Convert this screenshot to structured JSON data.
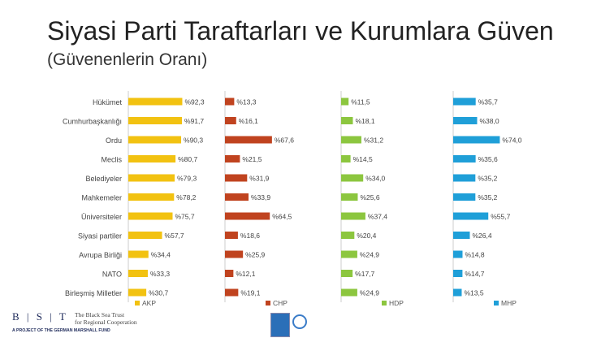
{
  "title": "Siyasi Parti Taraftarları ve Kurumlara Güven",
  "subtitle": "(Güvenenlerin Oranı)",
  "footer": {
    "logo_letters": "B | S | T",
    "org_name": "The Black Sea Trust\nfor Regional Cooperation",
    "tagline": "A PROJECT OF THE GERMAN MARSHALL FUND"
  },
  "colors": {
    "AKP": "#f2c211",
    "CHP": "#c0431f",
    "HDP": "#8cc63f",
    "MHP": "#1f9fd8"
  },
  "chart_data": {
    "type": "bar",
    "orientation": "horizontal",
    "categories": [
      "Hükümet",
      "Cumhurbaşkanlığı",
      "Ordu",
      "Meclis",
      "Belediyeler",
      "Mahkemeler",
      "Üniversiteler",
      "Siyasi partiler",
      "Avrupa Birliği",
      "NATO",
      "Birleşmiş Milletler"
    ],
    "series": [
      {
        "name": "AKP",
        "values": [
          92.3,
          91.7,
          90.3,
          80.7,
          79.3,
          78.2,
          75.7,
          57.7,
          34.4,
          33.3,
          30.7
        ],
        "labels": [
          "%92,3",
          "%91,7",
          "%90,3",
          "%80,7",
          "%79,3",
          "%78,2",
          "%75,7",
          "%57,7",
          "%34,4",
          "%33,3",
          "%30,7"
        ]
      },
      {
        "name": "CHP",
        "values": [
          13.3,
          16.1,
          67.6,
          21.5,
          31.9,
          33.9,
          64.5,
          18.6,
          25.9,
          12.1,
          19.1
        ],
        "labels": [
          "%13,3",
          "%16,1",
          "%67,6",
          "%21,5",
          "%31,9",
          "%33,9",
          "%64,5",
          "%18,6",
          "%25,9",
          "%12,1",
          "%19,1"
        ]
      },
      {
        "name": "HDP",
        "values": [
          11.5,
          18.1,
          31.2,
          14.5,
          34.0,
          25.6,
          37.4,
          20.4,
          24.9,
          17.7,
          24.9
        ],
        "labels": [
          "%11,5",
          "%18,1",
          "%31,2",
          "%14,5",
          "%34,0",
          "%25,6",
          "%37,4",
          "%20,4",
          "%24,9",
          "%17,7",
          "%24,9"
        ]
      },
      {
        "name": "MHP",
        "values": [
          35.7,
          38.0,
          74.0,
          35.6,
          35.2,
          35.2,
          55.7,
          26.4,
          14.8,
          14.7,
          13.5
        ],
        "labels": [
          "%35,7",
          "%38,0",
          "%74,0",
          "%35,6",
          "%35,2",
          "%35,2",
          "%55,7",
          "%26,4",
          "%14,8",
          "%14,7",
          "%13,5"
        ]
      }
    ],
    "xlim": [
      0,
      100
    ],
    "legend": "bottom of each panel",
    "grid": false
  }
}
